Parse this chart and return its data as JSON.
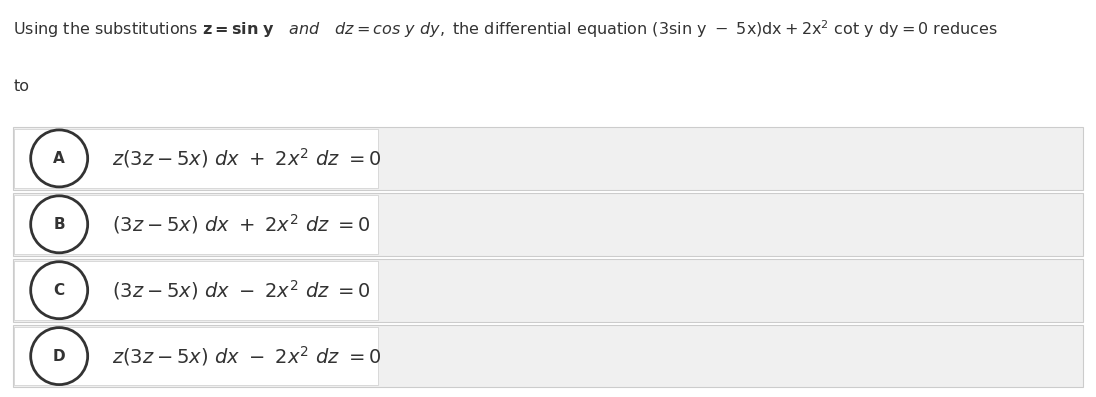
{
  "bg_color": "#ffffff",
  "option_bg_color": "#f0f0f0",
  "inner_box_color": "#f8f8f8",
  "border_color": "#cccccc",
  "text_color": "#333333",
  "figsize": [
    10.96,
    3.97
  ],
  "dpi": 100,
  "options": [
    {
      "label": "A",
      "has_z_prefix": true,
      "sign": "+"
    },
    {
      "label": "B",
      "has_z_prefix": false,
      "sign": "+"
    },
    {
      "label": "C",
      "has_z_prefix": false,
      "sign": "-"
    },
    {
      "label": "D",
      "has_z_prefix": true,
      "sign": "-"
    }
  ],
  "intro_text_size": 11.5,
  "formula_text_size": 14,
  "circle_label_size": 11
}
